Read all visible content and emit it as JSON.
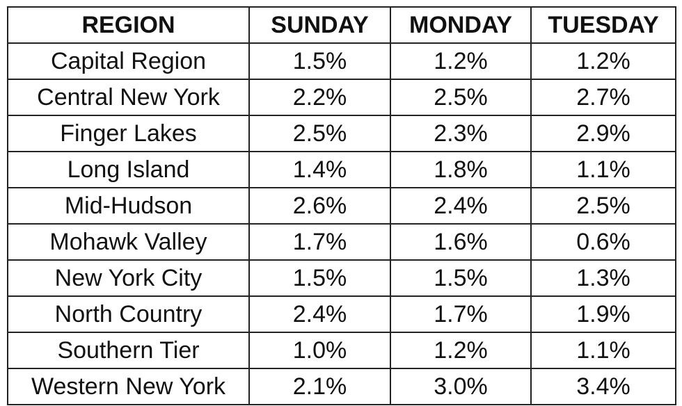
{
  "table": {
    "headers": [
      "REGION",
      "SUNDAY",
      "MONDAY",
      "TUESDAY"
    ],
    "rows": [
      [
        "Capital Region",
        "1.5%",
        "1.2%",
        "1.2%"
      ],
      [
        "Central New York",
        "2.2%",
        "2.5%",
        "2.7%"
      ],
      [
        "Finger Lakes",
        "2.5%",
        "2.3%",
        "2.9%"
      ],
      [
        "Long Island",
        "1.4%",
        "1.8%",
        "1.1%"
      ],
      [
        "Mid-Hudson",
        "2.6%",
        "2.4%",
        "2.5%"
      ],
      [
        "Mohawk Valley",
        "1.7%",
        "1.6%",
        "0.6%"
      ],
      [
        "New York City",
        "1.5%",
        "1.5%",
        "1.3%"
      ],
      [
        "North Country",
        "2.4%",
        "1.7%",
        "1.9%"
      ],
      [
        "Southern Tier",
        "1.0%",
        "1.2%",
        "1.1%"
      ],
      [
        "Western New York",
        "2.1%",
        "3.0%",
        "3.4%"
      ]
    ]
  }
}
